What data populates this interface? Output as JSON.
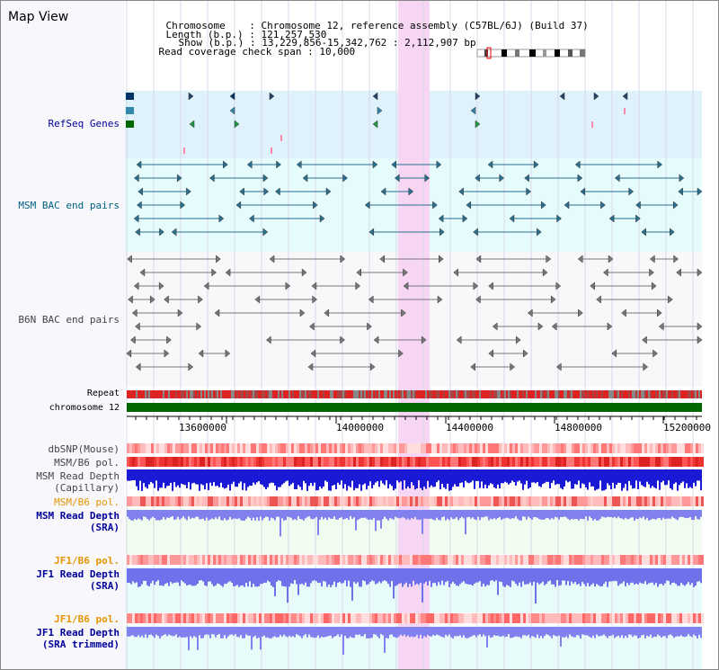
{
  "app": {
    "title": "Map View"
  },
  "header": {
    "chromosome_label": "Chromosome",
    "chromosome_value": "Chromosome 12, reference assembly (C57BL/6J) (Build 37)",
    "length_label": "Length (b.p.)",
    "length_value": "121,257,530",
    "show_label": "Show (b.p.)",
    "show_value": "13,229,856-15,342,762 : 2,112,907 bp",
    "coverage_label": "Read coverage check span",
    "coverage_value": "10,000"
  },
  "tracks": {
    "refseq": "RefSeq Genes",
    "msm_bac": "MSM BAC end pairs",
    "b6n_bac": "B6N BAC end pairs",
    "repeat": "Repeat",
    "chromosome": "chromosome 12",
    "dbsnp": "dbSNP(Mouse)",
    "msm_b6_pol_1": "MSM/B6 pol.",
    "msm_depth_cap_1": "MSM Read Depth",
    "msm_depth_cap_2": "(Capillary)",
    "msm_b6_pol_2": "MSM/B6 pol.",
    "msm_depth_sra_1": "MSM Read Depth",
    "msm_depth_sra_2": "(SRA)",
    "jf1_b6_pol_1": "JF1/B6 pol.",
    "jf1_depth_sra_1": "JF1 Read Depth",
    "jf1_depth_sra_2": "(SRA)",
    "jf1_b6_pol_2": "JF1/B6 pol.",
    "jf1_depth_trim_1": "JF1 Read Depth",
    "jf1_depth_trim_2": "(SRA trimmed)"
  },
  "axis": {
    "ticks": [
      "13600000",
      "14000000",
      "14400000",
      "14800000",
      "15200000"
    ]
  },
  "colors": {
    "refseq_bg": "#dff2fb",
    "msm_bac_bg": "#e6fbfb",
    "b6n_bac_bg": "#f6f6fb",
    "highlight": "#f7d6f3",
    "label_blue": "#000099",
    "label_teal": "#005f80",
    "label_orange": "#e69500",
    "label_gray": "#444444",
    "chromosome_green": "#006600",
    "depth_blue": "#1a1ad6",
    "depth_lavender": "#8080ee"
  }
}
